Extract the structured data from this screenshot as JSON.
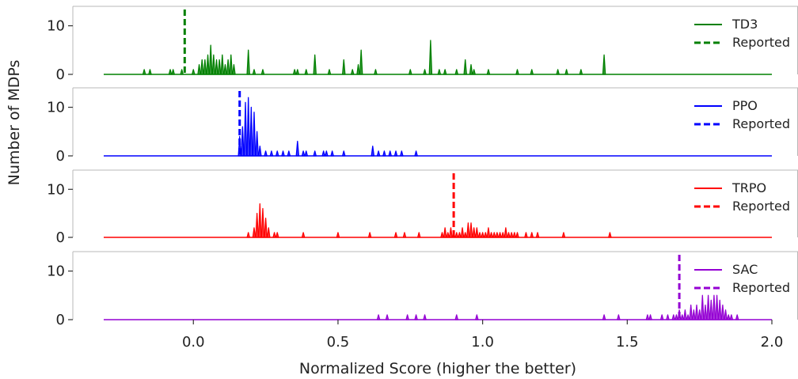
{
  "chart_data": {
    "type": "area",
    "xlabel": "Normalized Score (higher the better)",
    "ylabel": "Number of MDPs",
    "xlim": [
      -0.31,
      2.0
    ],
    "ylim": [
      0,
      14
    ],
    "xticks": [
      0.0,
      0.5,
      1.0,
      1.5,
      2.0
    ],
    "xtick_labels": [
      "0.0",
      "0.5",
      "1.0",
      "1.5",
      "2.0"
    ],
    "yticks": [
      0,
      10
    ],
    "ytick_labels": [
      "0",
      "10"
    ],
    "grid": false,
    "legend_placement": "top-right",
    "reported_label": "Reported",
    "panels": [
      {
        "name": "TD3",
        "color": "#008000",
        "reported": -0.03,
        "peaks": [
          [
            -0.17,
            1
          ],
          [
            -0.15,
            1
          ],
          [
            -0.08,
            1
          ],
          [
            -0.07,
            1
          ],
          [
            -0.04,
            1
          ],
          [
            0.0,
            1
          ],
          [
            0.02,
            2
          ],
          [
            0.03,
            3
          ],
          [
            0.04,
            3
          ],
          [
            0.05,
            4
          ],
          [
            0.06,
            6
          ],
          [
            0.07,
            4
          ],
          [
            0.08,
            3
          ],
          [
            0.09,
            3
          ],
          [
            0.1,
            4
          ],
          [
            0.11,
            2
          ],
          [
            0.12,
            3
          ],
          [
            0.13,
            4
          ],
          [
            0.14,
            2
          ],
          [
            0.19,
            5
          ],
          [
            0.21,
            1
          ],
          [
            0.24,
            1
          ],
          [
            0.35,
            1
          ],
          [
            0.36,
            1
          ],
          [
            0.39,
            1
          ],
          [
            0.42,
            4
          ],
          [
            0.47,
            1
          ],
          [
            0.52,
            3
          ],
          [
            0.55,
            1
          ],
          [
            0.57,
            2
          ],
          [
            0.58,
            5
          ],
          [
            0.63,
            1
          ],
          [
            0.75,
            1
          ],
          [
            0.8,
            1
          ],
          [
            0.82,
            7
          ],
          [
            0.85,
            1
          ],
          [
            0.87,
            1
          ],
          [
            0.91,
            1
          ],
          [
            0.94,
            3
          ],
          [
            0.96,
            2
          ],
          [
            0.97,
            1
          ],
          [
            1.02,
            1
          ],
          [
            1.12,
            1
          ],
          [
            1.17,
            1
          ],
          [
            1.26,
            1
          ],
          [
            1.29,
            1
          ],
          [
            1.34,
            1
          ],
          [
            1.42,
            4
          ]
        ]
      },
      {
        "name": "PPO",
        "color": "#0000ff",
        "reported": 0.16,
        "peaks": [
          [
            0.16,
            4
          ],
          [
            0.17,
            6
          ],
          [
            0.18,
            11
          ],
          [
            0.19,
            12
          ],
          [
            0.2,
            10
          ],
          [
            0.21,
            9
          ],
          [
            0.22,
            5
          ],
          [
            0.23,
            2
          ],
          [
            0.25,
            1
          ],
          [
            0.27,
            1
          ],
          [
            0.29,
            1
          ],
          [
            0.31,
            1
          ],
          [
            0.33,
            1
          ],
          [
            0.36,
            3
          ],
          [
            0.38,
            1
          ],
          [
            0.39,
            1
          ],
          [
            0.42,
            1
          ],
          [
            0.45,
            1
          ],
          [
            0.46,
            1
          ],
          [
            0.48,
            1
          ],
          [
            0.52,
            1
          ],
          [
            0.62,
            2
          ],
          [
            0.64,
            1
          ],
          [
            0.66,
            1
          ],
          [
            0.68,
            1
          ],
          [
            0.7,
            1
          ],
          [
            0.72,
            1
          ],
          [
            0.77,
            1
          ]
        ]
      },
      {
        "name": "TRPO",
        "color": "#ff0000",
        "reported": 0.9,
        "peaks": [
          [
            0.19,
            1
          ],
          [
            0.21,
            2
          ],
          [
            0.22,
            5
          ],
          [
            0.23,
            7
          ],
          [
            0.24,
            6
          ],
          [
            0.25,
            4
          ],
          [
            0.26,
            2
          ],
          [
            0.28,
            1
          ],
          [
            0.29,
            1
          ],
          [
            0.38,
            1
          ],
          [
            0.5,
            1
          ],
          [
            0.61,
            1
          ],
          [
            0.7,
            1
          ],
          [
            0.73,
            1
          ],
          [
            0.78,
            1
          ],
          [
            0.86,
            1
          ],
          [
            0.87,
            2
          ],
          [
            0.88,
            1
          ],
          [
            0.89,
            2
          ],
          [
            0.9,
            1
          ],
          [
            0.91,
            1
          ],
          [
            0.92,
            1
          ],
          [
            0.93,
            2
          ],
          [
            0.94,
            1
          ],
          [
            0.95,
            3
          ],
          [
            0.96,
            3
          ],
          [
            0.97,
            2
          ],
          [
            0.98,
            2
          ],
          [
            0.99,
            1
          ],
          [
            1.0,
            1
          ],
          [
            1.01,
            1
          ],
          [
            1.02,
            2
          ],
          [
            1.03,
            1
          ],
          [
            1.04,
            1
          ],
          [
            1.05,
            1
          ],
          [
            1.06,
            1
          ],
          [
            1.07,
            1
          ],
          [
            1.08,
            2
          ],
          [
            1.09,
            1
          ],
          [
            1.1,
            1
          ],
          [
            1.11,
            1
          ],
          [
            1.12,
            1
          ],
          [
            1.15,
            1
          ],
          [
            1.17,
            1
          ],
          [
            1.19,
            1
          ],
          [
            1.28,
            1
          ],
          [
            1.44,
            1
          ]
        ]
      },
      {
        "name": "SAC",
        "color": "#9400d3",
        "reported": 1.68,
        "peaks": [
          [
            0.64,
            1
          ],
          [
            0.67,
            1
          ],
          [
            0.74,
            1
          ],
          [
            0.77,
            1
          ],
          [
            0.8,
            1
          ],
          [
            0.91,
            1
          ],
          [
            0.98,
            1
          ],
          [
            1.42,
            1
          ],
          [
            1.47,
            1
          ],
          [
            1.57,
            1
          ],
          [
            1.58,
            1
          ],
          [
            1.62,
            1
          ],
          [
            1.64,
            1
          ],
          [
            1.66,
            1
          ],
          [
            1.67,
            1
          ],
          [
            1.68,
            2
          ],
          [
            1.69,
            1
          ],
          [
            1.7,
            2
          ],
          [
            1.71,
            1
          ],
          [
            1.72,
            3
          ],
          [
            1.73,
            2
          ],
          [
            1.74,
            3
          ],
          [
            1.75,
            2
          ],
          [
            1.76,
            5
          ],
          [
            1.77,
            3
          ],
          [
            1.78,
            5
          ],
          [
            1.79,
            4
          ],
          [
            1.8,
            5
          ],
          [
            1.81,
            5
          ],
          [
            1.82,
            4
          ],
          [
            1.83,
            3
          ],
          [
            1.84,
            2
          ],
          [
            1.85,
            1
          ],
          [
            1.86,
            1
          ],
          [
            1.88,
            1
          ]
        ]
      }
    ]
  }
}
